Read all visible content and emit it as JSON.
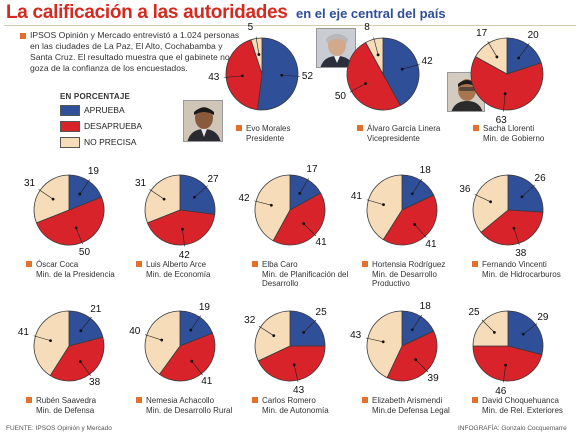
{
  "header": {
    "title": "La calificación a las autoridades",
    "subtitle": "en el eje central del país"
  },
  "intro": {
    "text": "IPSOS Opinión y Mercado entrevistó a 1.024 personas en las ciudades de La Paz, El Alto, Cochabamba y Santa Cruz. El resultado muestra que el gabinete no goza de la confianza de los encuestados."
  },
  "legend": {
    "heading": "EN PORCENTAJE",
    "items": [
      {
        "label": "APRUEBA",
        "color": "#2f4f98"
      },
      {
        "label": "DESAPRUEBA",
        "color": "#d8232a"
      },
      {
        "label": "NO PRECISA",
        "color": "#f6dcb8"
      }
    ]
  },
  "colors": {
    "aprueba": "#2f4f98",
    "desaprueba": "#d8232a",
    "no_precisa": "#f6dcb8",
    "accent": "#d42a1f",
    "bullet": "#e46f2a"
  },
  "chart_data": {
    "type": "pie",
    "categories": [
      "APRUEBA",
      "DESAPRUEBA",
      "NO PRECISA"
    ],
    "charts": [
      {
        "name": "Evo Morales",
        "role": "Presidente",
        "values": [
          52,
          43,
          5
        ]
      },
      {
        "name": "Álvaro García Linera",
        "role": "Vicepresidente",
        "values": [
          42,
          50,
          8
        ]
      },
      {
        "name": "Sacha Llorenti",
        "role": "Min. de Gobierno",
        "values": [
          20,
          63,
          17
        ]
      },
      {
        "name": "Óscar Coca",
        "role": "Min. de la Presidencia",
        "values": [
          19,
          50,
          31
        ]
      },
      {
        "name": "Luis Alberto Arce",
        "role": "Min. de Economía",
        "values": [
          27,
          42,
          31
        ]
      },
      {
        "name": "Elba Caro",
        "role": "Min. de Planificación del Desarrollo",
        "values": [
          17,
          41,
          42
        ]
      },
      {
        "name": "Hortensia Rodríguez",
        "role": "Min. de Desarrollo Productivo",
        "values": [
          18,
          41,
          41
        ]
      },
      {
        "name": "Fernando Vincenti",
        "role": "Min. de Hidrocarburos",
        "values": [
          26,
          38,
          36
        ]
      },
      {
        "name": "Rubén Saavedra",
        "role": "Min. de Defensa",
        "values": [
          21,
          38,
          41
        ]
      },
      {
        "name": "Nemesia Achacollo",
        "role": "Min. de Desarrollo Rural",
        "values": [
          19,
          41,
          40
        ]
      },
      {
        "name": "Carlos Romero",
        "role": "Min. de Autonomía",
        "values": [
          25,
          43,
          32
        ]
      },
      {
        "name": "Elizabeth Arismendi",
        "role": "Min.de Defensa Legal",
        "values": [
          18,
          39,
          43
        ]
      },
      {
        "name": "David Choquehuanca",
        "role": "Min. de Rel. Exteriores",
        "values": [
          29,
          46,
          25
        ]
      }
    ]
  },
  "footer": {
    "source": "FUENTE: IPSOS Opinión y Mercado",
    "credit": "INFOGRAFÍA: Gonzalo Cocquemarre"
  }
}
